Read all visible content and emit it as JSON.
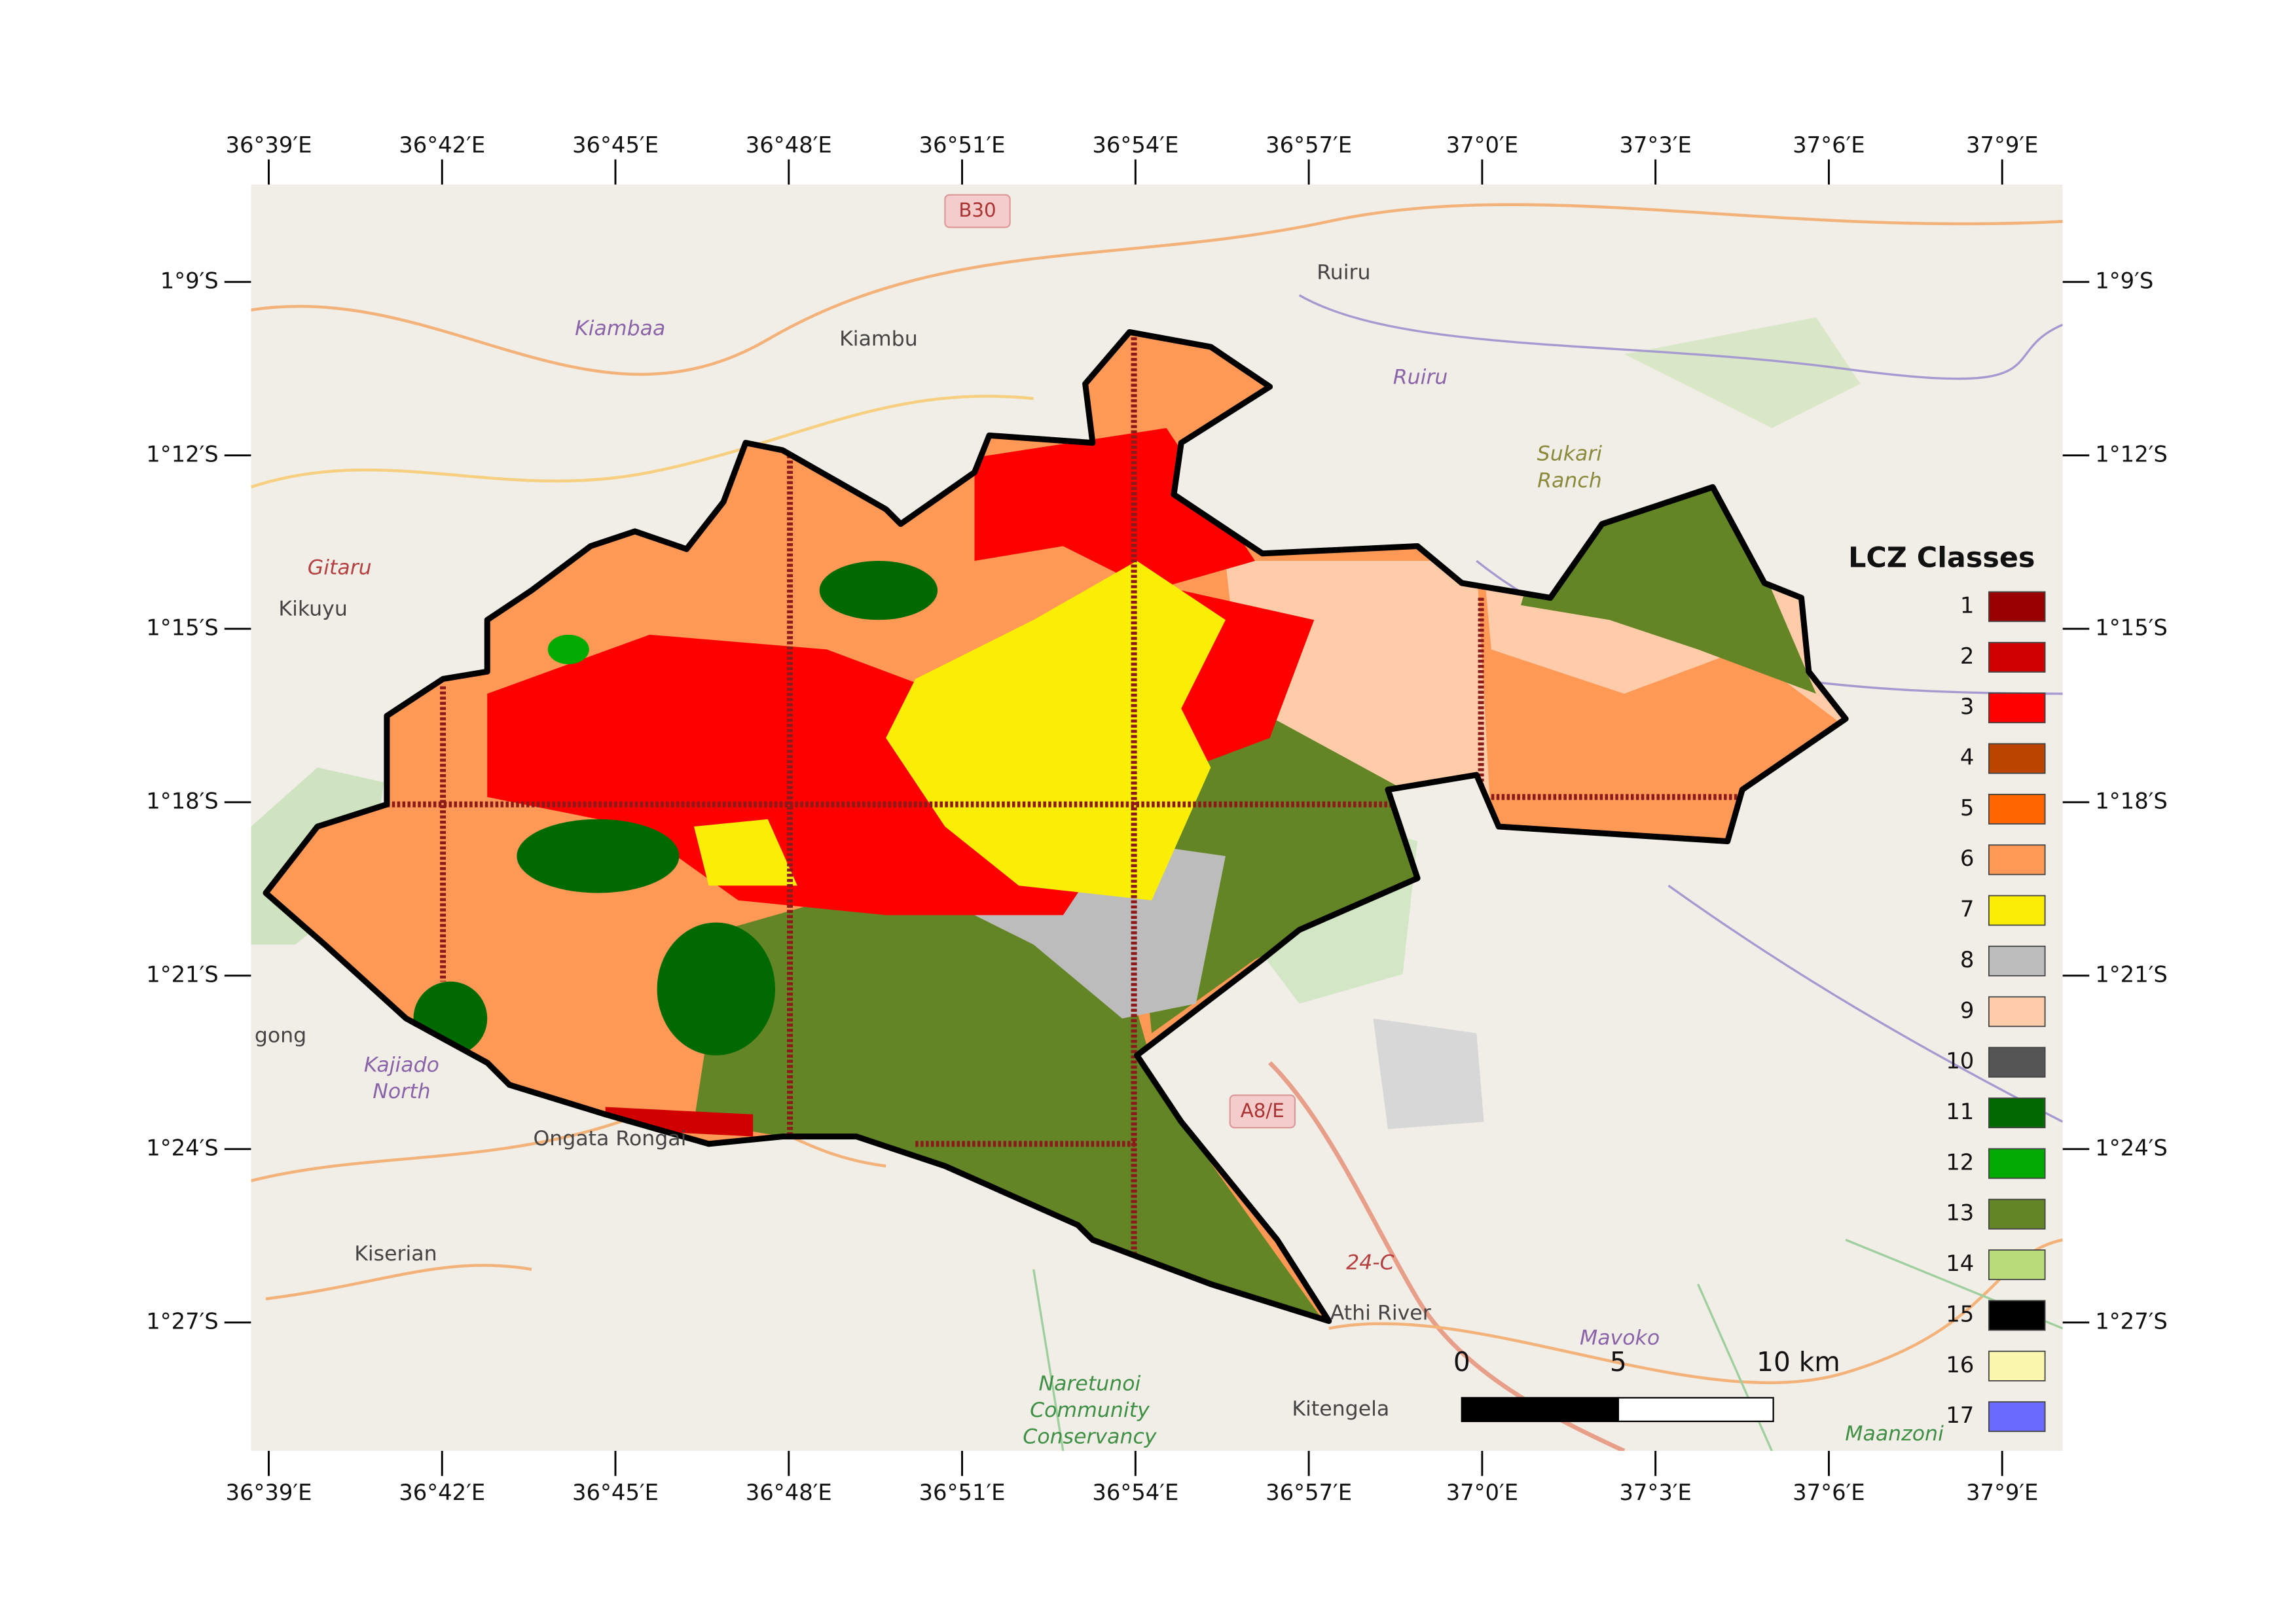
{
  "map": {
    "lon_ticks": [
      "36°39′E",
      "36°42′E",
      "36°45′E",
      "36°48′E",
      "36°51′E",
      "36°54′E",
      "36°57′E",
      "37°0′E",
      "37°3′E",
      "37°6′E",
      "37°9′E"
    ],
    "lat_ticks": [
      "1°9′S",
      "1°12′S",
      "1°15′S",
      "1°18′S",
      "1°21′S",
      "1°24′S",
      "1°27′S"
    ],
    "places": [
      {
        "lines": [
          "Ruiru"
        ],
        "kind": "town"
      },
      {
        "lines": [
          "Kiambu"
        ],
        "kind": "town"
      },
      {
        "lines": [
          "Kiambaa"
        ],
        "kind": "water"
      },
      {
        "lines": [
          "Ruiru"
        ],
        "kind": "water"
      },
      {
        "lines": [
          "Sukari",
          "Ranch"
        ],
        "kind": "olive"
      },
      {
        "lines": [
          "Gitaru"
        ],
        "kind": "red"
      },
      {
        "lines": [
          "Kikuyu"
        ],
        "kind": "town"
      },
      {
        "lines": [
          "Kajiado",
          "North"
        ],
        "kind": "water"
      },
      {
        "lines": [
          "gong"
        ],
        "kind": "town"
      },
      {
        "lines": [
          "Ongata Rongai"
        ],
        "kind": "town"
      },
      {
        "lines": [
          "Kiserian"
        ],
        "kind": "town"
      },
      {
        "lines": [
          "Athi River"
        ],
        "kind": "town"
      },
      {
        "lines": [
          "Kitengela"
        ],
        "kind": "town"
      },
      {
        "lines": [
          "Naretunoi",
          "Community",
          "Conservancy"
        ],
        "kind": "park"
      },
      {
        "lines": [
          "Mavoko"
        ],
        "kind": "water"
      },
      {
        "lines": [
          "Maanzoni"
        ],
        "kind": "park"
      },
      {
        "lines": [
          "24-C"
        ],
        "kind": "red"
      }
    ],
    "shields": [
      "B30",
      "A8/E"
    ],
    "legend": {
      "title": "LCZ Classes",
      "classes": [
        {
          "label": "1",
          "color": "#9b0000"
        },
        {
          "label": "2",
          "color": "#d10000"
        },
        {
          "label": "3",
          "color": "#ff0000"
        },
        {
          "label": "4",
          "color": "#bb4400"
        },
        {
          "label": "5",
          "color": "#ff6600"
        },
        {
          "label": "6",
          "color": "#ff9955"
        },
        {
          "label": "7",
          "color": "#faee05"
        },
        {
          "label": "8",
          "color": "#bcbcbc"
        },
        {
          "label": "9",
          "color": "#ffcca9"
        },
        {
          "label": "10",
          "color": "#555555"
        },
        {
          "label": "11",
          "color": "#006a00"
        },
        {
          "label": "12",
          "color": "#00aa00"
        },
        {
          "label": "13",
          "color": "#648526"
        },
        {
          "label": "14",
          "color": "#b9db79"
        },
        {
          "label": "15",
          "color": "#000000"
        },
        {
          "label": "16",
          "color": "#fbf7ae"
        },
        {
          "label": "17",
          "color": "#6a6aff"
        }
      ]
    },
    "scale_bar": {
      "labels": [
        "0",
        "5",
        "10 km"
      ]
    }
  }
}
